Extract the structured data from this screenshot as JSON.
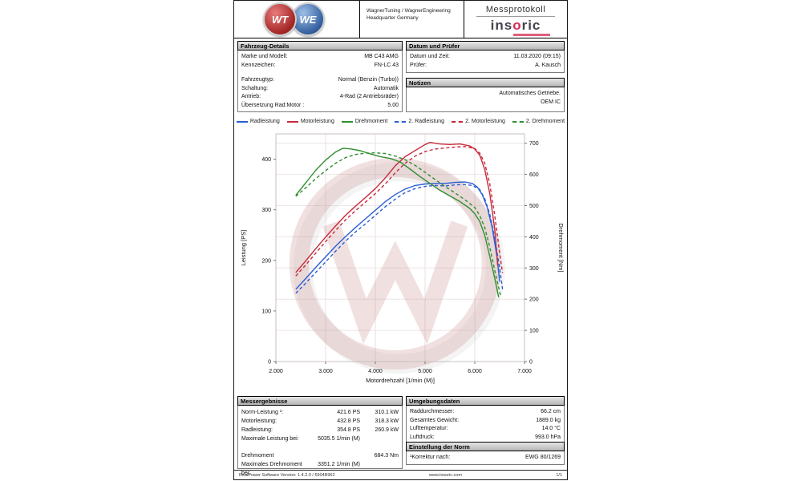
{
  "header": {
    "logo_wt": "WT",
    "logo_we": "WE",
    "company_line1": "WagnerTuning / WagnerEngineering",
    "company_line2": "Headquarter Germany",
    "doc_title": "Messprotokoll",
    "brand_pre": "ins",
    "brand_o": "o",
    "brand_post": "ric"
  },
  "vehicle": {
    "title": "Fahrzeug-Details",
    "rows": [
      {
        "label": "Marke und Modell:",
        "value": "MB C43 AMG"
      },
      {
        "label": "Kennzeichen:",
        "value": "FN-LC 43"
      },
      {
        "label": "Fahrzeugtyp:",
        "value": "Normal (Benzin (Turbo))"
      },
      {
        "label": "Schaltung:",
        "value": "Automatik"
      },
      {
        "label": "Antrieb:",
        "value": "4-Rad (2 Antriebsräder)"
      },
      {
        "label": "Übersetzung Rad:Motor :",
        "value": "5.00"
      }
    ]
  },
  "datum": {
    "title": "Datum und Prüfer",
    "rows": [
      {
        "label": "Datum und Zeit:",
        "value": "11.03.2020 (09:15)"
      },
      {
        "label": "Prüfer:",
        "value": "A. Kausch"
      }
    ]
  },
  "notizen": {
    "title": "Notizen",
    "line1": "Automatisches Getriebe.",
    "line2": "OEM IC"
  },
  "results": {
    "title": "Messergebnisse",
    "rows": [
      {
        "label": "Norm-Leistung ¹:",
        "v1": "421.6 PS",
        "v2": "310.1 kW"
      },
      {
        "label": "Motorleistung:",
        "v1": "432.8 PS",
        "v2": "318.3 kW"
      },
      {
        "label": "Radleistung:",
        "v1": "354.8 PS",
        "v2": "260.9 kW"
      },
      {
        "label": "Maximale Leistung bei:",
        "v1": "5035.5 1/min (M)",
        "v2": ""
      },
      {
        "label": "Drehmoment",
        "v1": "",
        "v2": "684.3 Nm"
      },
      {
        "label": "Maximales Drehmoment bei:",
        "v1": "3351.2 1/min (M)",
        "v2": ""
      }
    ]
  },
  "environment": {
    "title": "Umgebungsdaten",
    "rows": [
      {
        "label": "Raddurchmesser:",
        "value": "66.2 cm"
      },
      {
        "label": "Gesamtes Gewicht:",
        "value": "1889.0 kg"
      },
      {
        "label": "Lufttemperatur:",
        "value": "14.0 °C"
      },
      {
        "label": "Luftdruck:",
        "value": "993.0 hPa"
      }
    ]
  },
  "norm": {
    "title": "Einstellung der Norm",
    "rows": [
      {
        "label": "¹Korrektur nach:",
        "value": "EWG 80/1269"
      }
    ]
  },
  "footer": {
    "left": "RealPower Software Version: 1.4.2.0 / 6904B962",
    "center": "www.insoric.com",
    "right": "1/1"
  },
  "colors": {
    "accent_red": "#c8293c",
    "accent_blue": "#2a5fd4",
    "accent_green": "#2f8f2f",
    "watermark": "#c89090"
  },
  "chart_data": {
    "type": "line",
    "xlabel": "Motordrehzahl [1/min (M)]",
    "ylabel_left": "Leistung [PS]",
    "ylabel_right": "Drehmoment [Nm]",
    "xlim": [
      2000,
      7000
    ],
    "xticks": [
      2000,
      3000,
      4000,
      5000,
      6000,
      7000
    ],
    "xtick_labels": [
      "2.000",
      "3.000",
      "4.000",
      "5.000",
      "6.000",
      "7.000"
    ],
    "ylim_left": [
      0,
      450
    ],
    "yticks_left": [
      0,
      100,
      200,
      300,
      400
    ],
    "ylim_right": [
      0,
      730
    ],
    "yticks_right": [
      0,
      100,
      200,
      300,
      400,
      500,
      600,
      700
    ],
    "grid": true,
    "legend_position": "top",
    "series": [
      {
        "name": "Radleistung",
        "axis": "left",
        "color": "#2a5fd4",
        "dash": false,
        "points": [
          [
            2400,
            143
          ],
          [
            2600,
            164
          ],
          [
            2800,
            186
          ],
          [
            3000,
            207
          ],
          [
            3200,
            228
          ],
          [
            3400,
            247
          ],
          [
            3600,
            265
          ],
          [
            3800,
            282
          ],
          [
            4000,
            299
          ],
          [
            4200,
            316
          ],
          [
            4400,
            330
          ],
          [
            4600,
            341
          ],
          [
            4800,
            348
          ],
          [
            5000,
            351
          ],
          [
            5200,
            352
          ],
          [
            5400,
            352
          ],
          [
            5600,
            354
          ],
          [
            5800,
            355
          ],
          [
            5950,
            352
          ],
          [
            6050,
            345
          ],
          [
            6150,
            330
          ],
          [
            6250,
            305
          ],
          [
            6350,
            265
          ],
          [
            6450,
            205
          ],
          [
            6500,
            158
          ]
        ]
      },
      {
        "name": "Motorleistung",
        "axis": "left",
        "color": "#c8293c",
        "dash": false,
        "points": [
          [
            2400,
            176
          ],
          [
            2600,
            199
          ],
          [
            2800,
            223
          ],
          [
            3000,
            246
          ],
          [
            3200,
            268
          ],
          [
            3400,
            289
          ],
          [
            3600,
            307
          ],
          [
            3800,
            324
          ],
          [
            4000,
            342
          ],
          [
            4200,
            363
          ],
          [
            4400,
            387
          ],
          [
            4600,
            405
          ],
          [
            4800,
            417
          ],
          [
            5000,
            429
          ],
          [
            5100,
            433
          ],
          [
            5300,
            430
          ],
          [
            5500,
            429
          ],
          [
            5700,
            430
          ],
          [
            5900,
            426
          ],
          [
            6000,
            420
          ],
          [
            6100,
            408
          ],
          [
            6200,
            380
          ],
          [
            6300,
            333
          ],
          [
            6400,
            263
          ],
          [
            6460,
            190
          ]
        ]
      },
      {
        "name": "Drehmoment",
        "axis": "right",
        "color": "#2f8f2f",
        "dash": false,
        "points": [
          [
            2400,
            533
          ],
          [
            2600,
            573
          ],
          [
            2800,
            613
          ],
          [
            3000,
            646
          ],
          [
            3200,
            672
          ],
          [
            3350,
            684
          ],
          [
            3500,
            682
          ],
          [
            3700,
            676
          ],
          [
            3900,
            666
          ],
          [
            4100,
            657
          ],
          [
            4300,
            651
          ],
          [
            4500,
            640
          ],
          [
            4700,
            617
          ],
          [
            4900,
            593
          ],
          [
            5100,
            571
          ],
          [
            5300,
            549
          ],
          [
            5500,
            531
          ],
          [
            5700,
            513
          ],
          [
            5900,
            491
          ],
          [
            6000,
            474
          ],
          [
            6100,
            449
          ],
          [
            6200,
            405
          ],
          [
            6300,
            338
          ],
          [
            6400,
            268
          ],
          [
            6480,
            206
          ]
        ]
      },
      {
        "name": "2. Radleistung",
        "axis": "left",
        "color": "#2a5fd4",
        "dash": true,
        "points": [
          [
            2400,
            135
          ],
          [
            2600,
            155
          ],
          [
            2800,
            176
          ],
          [
            3000,
            197
          ],
          [
            3200,
            218
          ],
          [
            3400,
            238
          ],
          [
            3600,
            256
          ],
          [
            3800,
            272
          ],
          [
            4000,
            289
          ],
          [
            4200,
            306
          ],
          [
            4400,
            321
          ],
          [
            4600,
            334
          ],
          [
            4800,
            342
          ],
          [
            5000,
            346
          ],
          [
            5200,
            348
          ],
          [
            5400,
            347
          ],
          [
            5600,
            349
          ],
          [
            5800,
            350
          ],
          [
            5950,
            348
          ],
          [
            6100,
            340
          ],
          [
            6200,
            322
          ],
          [
            6300,
            292
          ],
          [
            6400,
            245
          ],
          [
            6500,
            185
          ],
          [
            6560,
            142
          ]
        ]
      },
      {
        "name": "2. Motorleistung",
        "axis": "left",
        "color": "#c8293c",
        "dash": true,
        "points": [
          [
            2400,
            169
          ],
          [
            2600,
            191
          ],
          [
            2800,
            214
          ],
          [
            3000,
            237
          ],
          [
            3200,
            259
          ],
          [
            3400,
            280
          ],
          [
            3600,
            298
          ],
          [
            3800,
            315
          ],
          [
            4000,
            332
          ],
          [
            4200,
            351
          ],
          [
            4400,
            373
          ],
          [
            4600,
            392
          ],
          [
            4800,
            406
          ],
          [
            5000,
            415
          ],
          [
            5200,
            420
          ],
          [
            5400,
            422
          ],
          [
            5600,
            424
          ],
          [
            5800,
            425
          ],
          [
            6000,
            421
          ],
          [
            6100,
            412
          ],
          [
            6200,
            392
          ],
          [
            6300,
            352
          ],
          [
            6400,
            290
          ],
          [
            6500,
            215
          ],
          [
            6560,
            175
          ]
        ]
      },
      {
        "name": "2. Drehmoment",
        "axis": "right",
        "color": "#2f8f2f",
        "dash": true,
        "points": [
          [
            2400,
            530
          ],
          [
            2600,
            557
          ],
          [
            2800,
            586
          ],
          [
            3000,
            612
          ],
          [
            3200,
            636
          ],
          [
            3400,
            654
          ],
          [
            3600,
            664
          ],
          [
            3800,
            668
          ],
          [
            4000,
            669
          ],
          [
            4200,
            667
          ],
          [
            4400,
            659
          ],
          [
            4600,
            647
          ],
          [
            4800,
            629
          ],
          [
            5000,
            607
          ],
          [
            5200,
            584
          ],
          [
            5400,
            561
          ],
          [
            5600,
            541
          ],
          [
            5800,
            519
          ],
          [
            6000,
            494
          ],
          [
            6100,
            468
          ],
          [
            6200,
            430
          ],
          [
            6300,
            368
          ],
          [
            6400,
            293
          ],
          [
            6520,
            210
          ]
        ]
      }
    ]
  }
}
